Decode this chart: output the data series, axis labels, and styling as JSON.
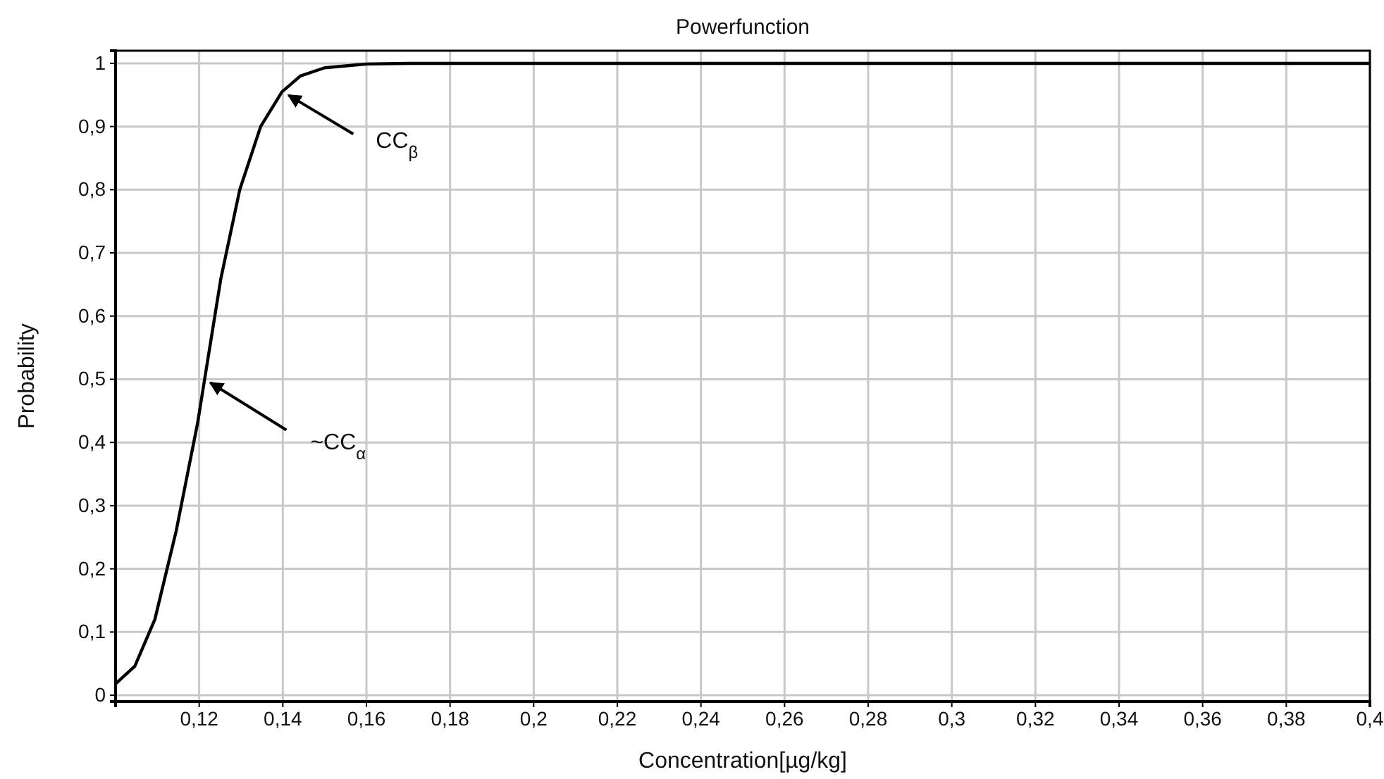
{
  "chart_data": {
    "type": "line",
    "title": "Powerfunction",
    "xlabel": "Concentration[µg/kg]",
    "ylabel": "Probability",
    "x": [
      0.1,
      0.1046,
      0.1094,
      0.1145,
      0.1196,
      0.1213,
      0.1252,
      0.1297,
      0.1347,
      0.1398,
      0.1442,
      0.15,
      0.16,
      0.17,
      0.4
    ],
    "series": [
      {
        "color": "#000000",
        "values": [
          0.018,
          0.046,
          0.12,
          0.26,
          0.43,
          0.5,
          0.66,
          0.8,
          0.9,
          0.955,
          0.98,
          0.993,
          0.999,
          1,
          1
        ]
      }
    ],
    "xlim": [
      0.1,
      0.4
    ],
    "xticks": [
      {
        "value": 0.12,
        "label": "0,12"
      },
      {
        "value": 0.14,
        "label": "0,14"
      },
      {
        "value": 0.16,
        "label": "0,16"
      },
      {
        "value": 0.18,
        "label": "0,18"
      },
      {
        "value": 0.2,
        "label": "0,2"
      },
      {
        "value": 0.22,
        "label": "0,22"
      },
      {
        "value": 0.24,
        "label": "0,24"
      },
      {
        "value": 0.26,
        "label": "0,26"
      },
      {
        "value": 0.28,
        "label": "0,28"
      },
      {
        "value": 0.3,
        "label": "0,3"
      },
      {
        "value": 0.32,
        "label": "0,32"
      },
      {
        "value": 0.34,
        "label": "0,34"
      },
      {
        "value": 0.36,
        "label": "0,36"
      },
      {
        "value": 0.38,
        "label": "0,38"
      },
      {
        "value": 0.4,
        "label": "0,4"
      }
    ],
    "ylim": [
      -0.01,
      1.02
    ],
    "yticks": [
      0,
      {
        "value": 0.1,
        "label": "0,1"
      },
      {
        "value": 0.2,
        "label": "0,2"
      },
      {
        "value": 0.3,
        "label": "0,3"
      },
      {
        "value": 0.4,
        "label": "0,4"
      },
      {
        "value": 0.5,
        "label": "0,5"
      },
      {
        "value": 0.6,
        "label": "0,6"
      },
      {
        "value": 0.7,
        "label": "0,7"
      },
      {
        "value": 0.8,
        "label": "0,8"
      },
      {
        "value": 0.9,
        "label": "0,9"
      },
      1
    ],
    "grid": true,
    "marker": "none",
    "line_style": "solid",
    "annotations": [
      {
        "text": "CC$_{β}$",
        "x": 0.14,
        "y": 0.955
      },
      {
        "text": "~CC$_{α}$",
        "x": 0.1213,
        "y": 0.5
      }
    ]
  }
}
